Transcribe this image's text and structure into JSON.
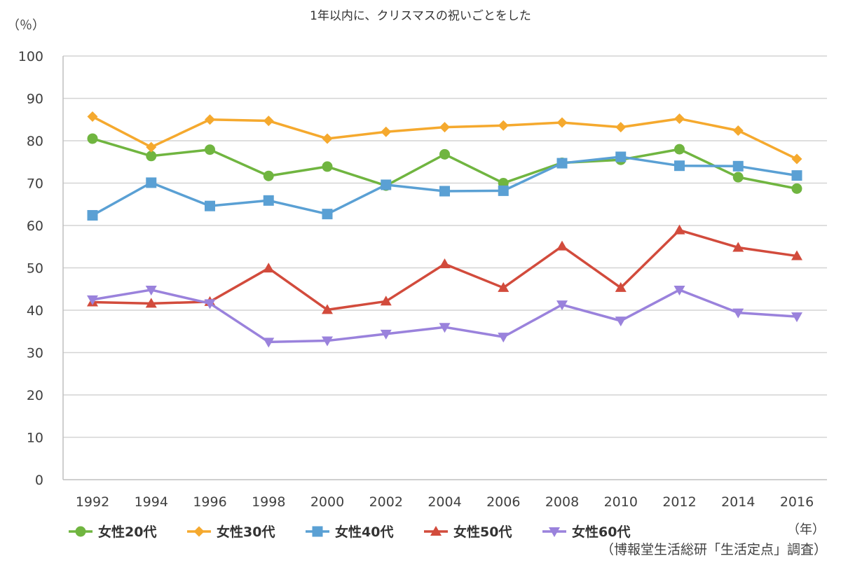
{
  "chart_data": {
    "type": "line",
    "title": "1年以内に、クリスマスの祝いごとをした",
    "ylabel": "（％）",
    "xlabel": "（年）",
    "source": "（博報堂生活総研「生活定点」調査）",
    "ylim": [
      0,
      100
    ],
    "yticks": [
      0,
      10,
      20,
      30,
      40,
      50,
      60,
      70,
      80,
      90,
      100
    ],
    "grid": true,
    "legend_position": "bottom",
    "categories": [
      "1992",
      "1994",
      "1996",
      "1998",
      "2000",
      "2002",
      "2004",
      "2006",
      "2008",
      "2010",
      "2012",
      "2014",
      "2016"
    ],
    "series": [
      {
        "name": "女性20代",
        "color": "#70b540",
        "marker": "circle",
        "values": [
          80.5,
          76.4,
          77.9,
          71.7,
          73.9,
          69.4,
          76.8,
          70.0,
          74.8,
          75.5,
          78.0,
          71.4,
          68.7
        ]
      },
      {
        "name": "女性30代",
        "color": "#f5a92e",
        "marker": "diamond",
        "values": [
          85.7,
          78.5,
          85.0,
          84.7,
          80.5,
          82.1,
          83.2,
          83.6,
          84.3,
          83.2,
          85.2,
          82.4,
          75.7
        ]
      },
      {
        "name": "女性40代",
        "color": "#5aa0d4",
        "marker": "square",
        "values": [
          62.4,
          70.1,
          64.6,
          65.9,
          62.7,
          69.6,
          68.1,
          68.2,
          74.7,
          76.2,
          74.1,
          74.0,
          71.8
        ]
      },
      {
        "name": "女性50代",
        "color": "#d24b3c",
        "marker": "triangle-up",
        "values": [
          41.9,
          41.6,
          42.0,
          49.9,
          40.1,
          42.1,
          50.9,
          45.3,
          55.1,
          45.3,
          58.9,
          54.8,
          52.8
        ]
      },
      {
        "name": "女性60代",
        "color": "#9a82dc",
        "marker": "triangle-down",
        "values": [
          42.5,
          44.8,
          41.6,
          32.5,
          32.8,
          34.4,
          36.0,
          33.7,
          41.3,
          37.5,
          44.8,
          39.4,
          38.5
        ]
      }
    ]
  }
}
